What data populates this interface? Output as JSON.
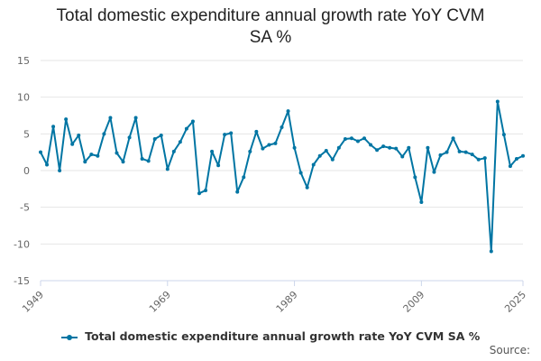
{
  "chart_data": {
    "type": "line",
    "title_lines": [
      "Total domestic expenditure annual growth rate YoY CVM",
      "SA %"
    ],
    "ylim": [
      -15,
      15
    ],
    "yticks": [
      "15",
      "10",
      "5",
      "0",
      "-5",
      "-10",
      "-15"
    ],
    "yticks_values": [
      15,
      10,
      5,
      0,
      -5,
      -10,
      -15
    ],
    "xlim": [
      1949,
      2025
    ],
    "xticks": [
      "1949",
      "1969",
      "1989",
      "2009",
      "2025"
    ],
    "xticks_values": [
      1949,
      1969,
      1989,
      2009,
      2025
    ],
    "series": [
      {
        "name": "Total domestic expenditure annual growth rate YoY CVM SA %",
        "color": "#0075a3",
        "x": [
          1949,
          1950,
          1951,
          1952,
          1953,
          1954,
          1955,
          1956,
          1957,
          1958,
          1959,
          1960,
          1961,
          1962,
          1963,
          1964,
          1965,
          1966,
          1967,
          1968,
          1969,
          1970,
          1971,
          1972,
          1973,
          1974,
          1975,
          1976,
          1977,
          1978,
          1979,
          1980,
          1981,
          1982,
          1983,
          1984,
          1985,
          1986,
          1987,
          1988,
          1989,
          1990,
          1991,
          1992,
          1993,
          1994,
          1995,
          1996,
          1997,
          1998,
          1999,
          2000,
          2001,
          2002,
          2003,
          2004,
          2005,
          2006,
          2007,
          2008,
          2009,
          2010,
          2011,
          2012,
          2013,
          2014,
          2015,
          2016,
          2017,
          2018,
          2019,
          2020,
          2021,
          2022,
          2023,
          2024,
          2025
        ],
        "values": [
          2.5,
          0.8,
          6.0,
          0.0,
          7.0,
          3.6,
          4.8,
          1.2,
          2.2,
          2.0,
          5.0,
          7.2,
          2.4,
          1.2,
          4.5,
          7.2,
          1.6,
          1.3,
          4.3,
          4.8,
          0.2,
          2.6,
          3.9,
          5.7,
          6.7,
          -3.1,
          -2.7,
          2.6,
          0.7,
          4.9,
          5.1,
          -2.9,
          -0.9,
          2.6,
          5.3,
          3.0,
          3.5,
          3.7,
          5.9,
          8.1,
          3.1,
          -0.3,
          -2.3,
          0.8,
          2.0,
          2.7,
          1.5,
          3.1,
          4.3,
          4.4,
          4.0,
          4.4,
          3.5,
          2.8,
          3.3,
          3.1,
          3.0,
          1.9,
          3.1,
          -0.9,
          -4.3,
          3.1,
          -0.2,
          2.1,
          2.5,
          4.4,
          2.6,
          2.5,
          2.2,
          1.5,
          1.7,
          -11.0,
          9.4,
          4.9,
          0.6,
          1.6,
          2.0
        ]
      }
    ],
    "legend": "Total domestic expenditure annual growth rate YoY CVM SA %",
    "legend_position": "bottom",
    "grid": true,
    "source_label": "Source:"
  }
}
